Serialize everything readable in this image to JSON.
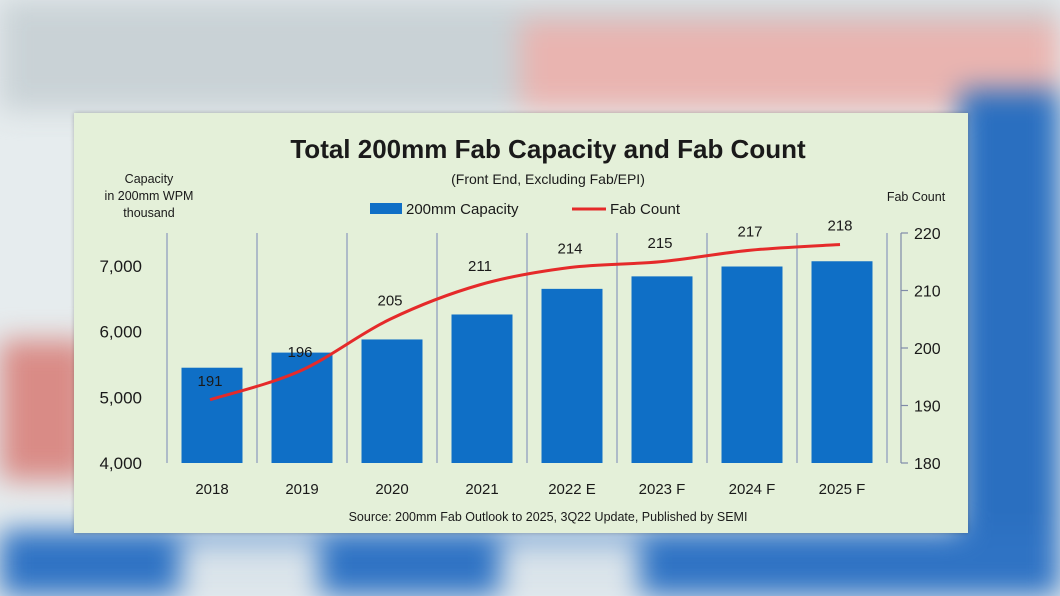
{
  "colors": {
    "bar": "#0f6fc6",
    "line": "#e52a2a",
    "card_bg": "#e4f0d9",
    "gridline": "#8a98bd"
  },
  "chart_data": {
    "type": "bar",
    "title": "Total 200mm Fab Capacity and Fab Count",
    "subtitle": "(Front End, Excluding Fab/EPI)",
    "source": "Source: 200mm Fab Outlook to 2025, 3Q22 Update, Published by SEMI",
    "ylabel_left": [
      "Capacity",
      "in 200mm WPM",
      "thousand"
    ],
    "ylabel_right": "Fab Count",
    "categories": [
      "2018",
      "2019",
      "2020",
      "2021",
      "2022 E",
      "2023 F",
      "2024 F",
      "2025 F"
    ],
    "left_axis": {
      "min": 4000,
      "max": 7500,
      "ticks": [
        "4,000",
        "5,000",
        "6,000",
        "7,000"
      ],
      "tick_values": [
        4000,
        5000,
        6000,
        7000
      ]
    },
    "right_axis": {
      "min": 180,
      "max": 220,
      "ticks": [
        "180",
        "190",
        "200",
        "210",
        "220"
      ],
      "tick_values": [
        180,
        190,
        200,
        210,
        220
      ]
    },
    "series": [
      {
        "name": "200mm Capacity",
        "kind": "bar",
        "axis": "left",
        "values": [
          5450,
          5680,
          5880,
          6260,
          6650,
          6840,
          6990,
          7070
        ]
      },
      {
        "name": "Fab Count",
        "kind": "line",
        "axis": "right",
        "values": [
          191,
          196,
          205,
          211,
          214,
          215,
          217,
          218
        ],
        "labels": [
          "191",
          "196",
          "205",
          "211",
          "214",
          "215",
          "217",
          "218"
        ]
      }
    ],
    "legend_position": "top-center",
    "grid": "vertical separators between categories"
  }
}
